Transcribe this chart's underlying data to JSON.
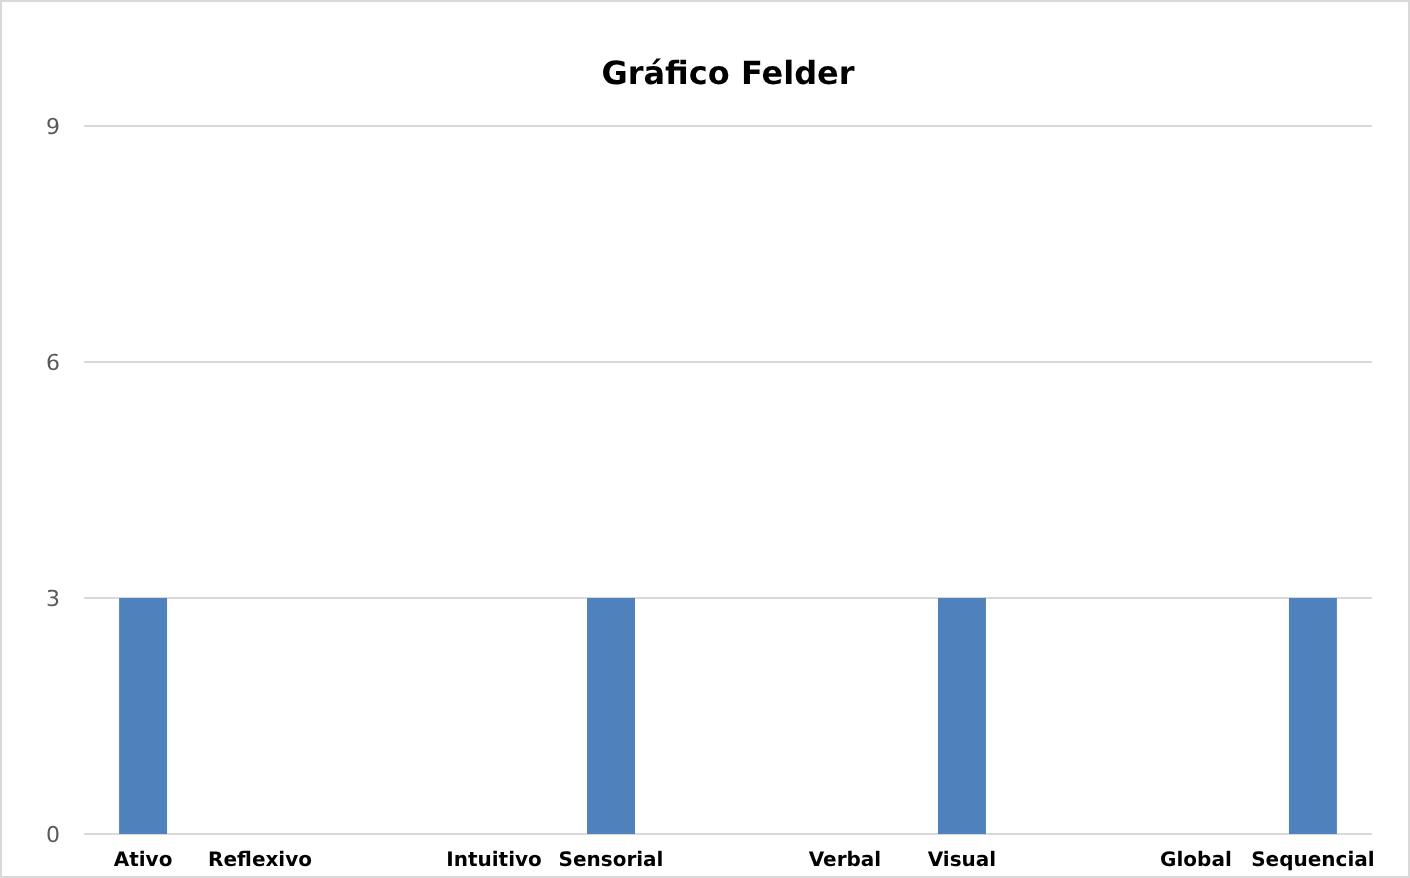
{
  "chart_data": {
    "type": "bar",
    "title": "Gráfico Felder",
    "categories": [
      "Ativo",
      "Reflexivo",
      null,
      "Intuitivo",
      "Sensorial",
      null,
      "Verbal",
      "Visual",
      null,
      "Global",
      "Sequencial"
    ],
    "values": [
      3,
      0,
      null,
      0,
      3,
      null,
      0,
      3,
      null,
      0,
      3
    ],
    "color": "#4f81bd",
    "ylim": [
      0,
      9
    ],
    "yticks": [
      0,
      3,
      6,
      9
    ],
    "grid": "y"
  }
}
